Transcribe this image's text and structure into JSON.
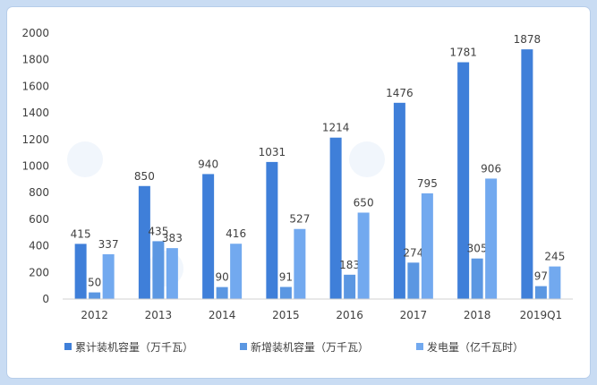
{
  "chart_data": {
    "type": "bar",
    "categories": [
      "2012",
      "2013",
      "2014",
      "2015",
      "2016",
      "2017",
      "2018",
      "2019Q1"
    ],
    "series": [
      {
        "name": "累计装机容量（万千瓦）",
        "values": [
          415,
          850,
          940,
          1031,
          1214,
          1476,
          1781,
          1878
        ],
        "color": "#3f7fd9"
      },
      {
        "name": "新增装机容量（万千瓦）",
        "values": [
          50,
          435,
          90,
          91,
          183,
          274,
          305,
          97
        ],
        "color": "#5b97e2"
      },
      {
        "name": "发电量（亿千瓦时）",
        "values": [
          337,
          383,
          416,
          527,
          650,
          795,
          906,
          245
        ],
        "color": "#72a9ef"
      }
    ],
    "ylim": [
      0,
      2000
    ],
    "yticks": [
      0,
      200,
      400,
      600,
      800,
      1000,
      1200,
      1400,
      1600,
      1800,
      2000
    ],
    "grid": false,
    "legend_position": "bottom"
  }
}
